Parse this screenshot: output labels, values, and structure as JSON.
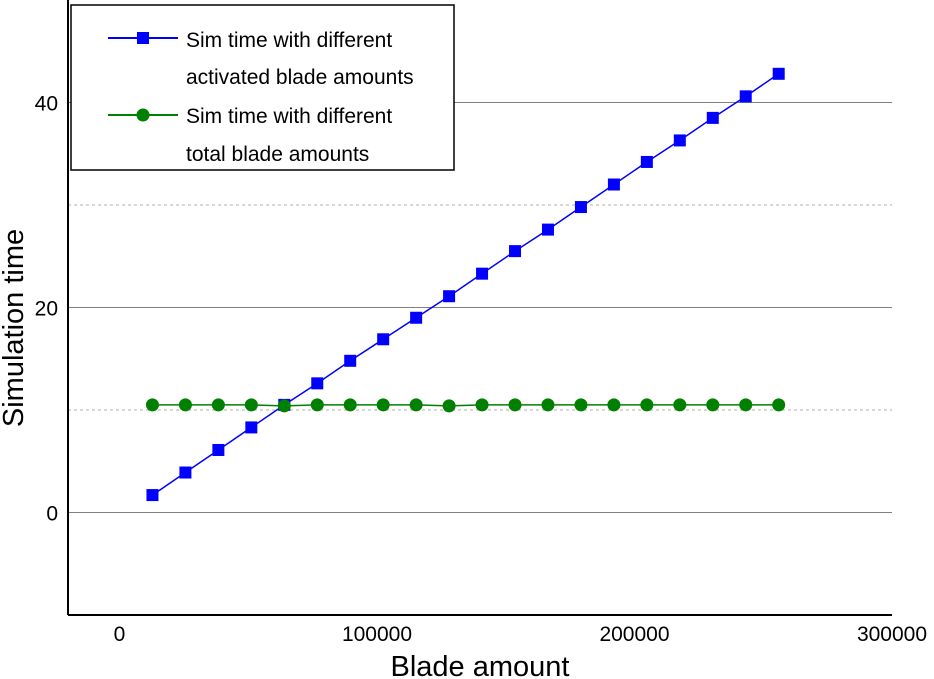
{
  "chart_data": {
    "type": "line",
    "xlabel": "Blade amount",
    "ylabel": "Simulation time",
    "xlim": [
      -20000,
      300000
    ],
    "ylim": [
      -10,
      50
    ],
    "x_ticks": [
      0,
      100000,
      200000,
      300000
    ],
    "x_tick_labels": [
      "0",
      "100000",
      "200000",
      "300000"
    ],
    "y_ticks": [
      0,
      20,
      40
    ],
    "y_tick_labels": [
      "0",
      "20",
      "40"
    ],
    "y_minor_grid": [
      10,
      30
    ],
    "grid": true,
    "legend": {
      "placement": "top-left",
      "entries": [
        {
          "line1": "Sim time with different",
          "line2": "activated blade amounts",
          "color": "#0000ff",
          "marker": "square"
        },
        {
          "line1": "Sim time with different",
          "line2": "total blade amounts",
          "color": "#008000",
          "marker": "circle"
        }
      ]
    },
    "x": [
      12800,
      25600,
      38400,
      51200,
      64000,
      76800,
      89600,
      102400,
      115200,
      128000,
      140800,
      153600,
      166400,
      179200,
      192000,
      204800,
      217600,
      230400,
      243200,
      256000
    ],
    "series": [
      {
        "name": "Sim time with different activated blade amounts",
        "color": "#0000ff",
        "marker": "square",
        "values": [
          1.7,
          3.9,
          6.1,
          8.3,
          10.5,
          12.6,
          14.8,
          16.9,
          19.0,
          21.1,
          23.3,
          25.5,
          27.6,
          29.8,
          32.0,
          34.2,
          36.3,
          38.5,
          40.6,
          42.8
        ]
      },
      {
        "name": "Sim time with different total blade amounts",
        "color": "#008000",
        "marker": "circle",
        "values": [
          10.5,
          10.5,
          10.5,
          10.5,
          10.4,
          10.5,
          10.5,
          10.5,
          10.5,
          10.4,
          10.5,
          10.5,
          10.5,
          10.5,
          10.5,
          10.5,
          10.5,
          10.5,
          10.5,
          10.5
        ]
      }
    ]
  }
}
